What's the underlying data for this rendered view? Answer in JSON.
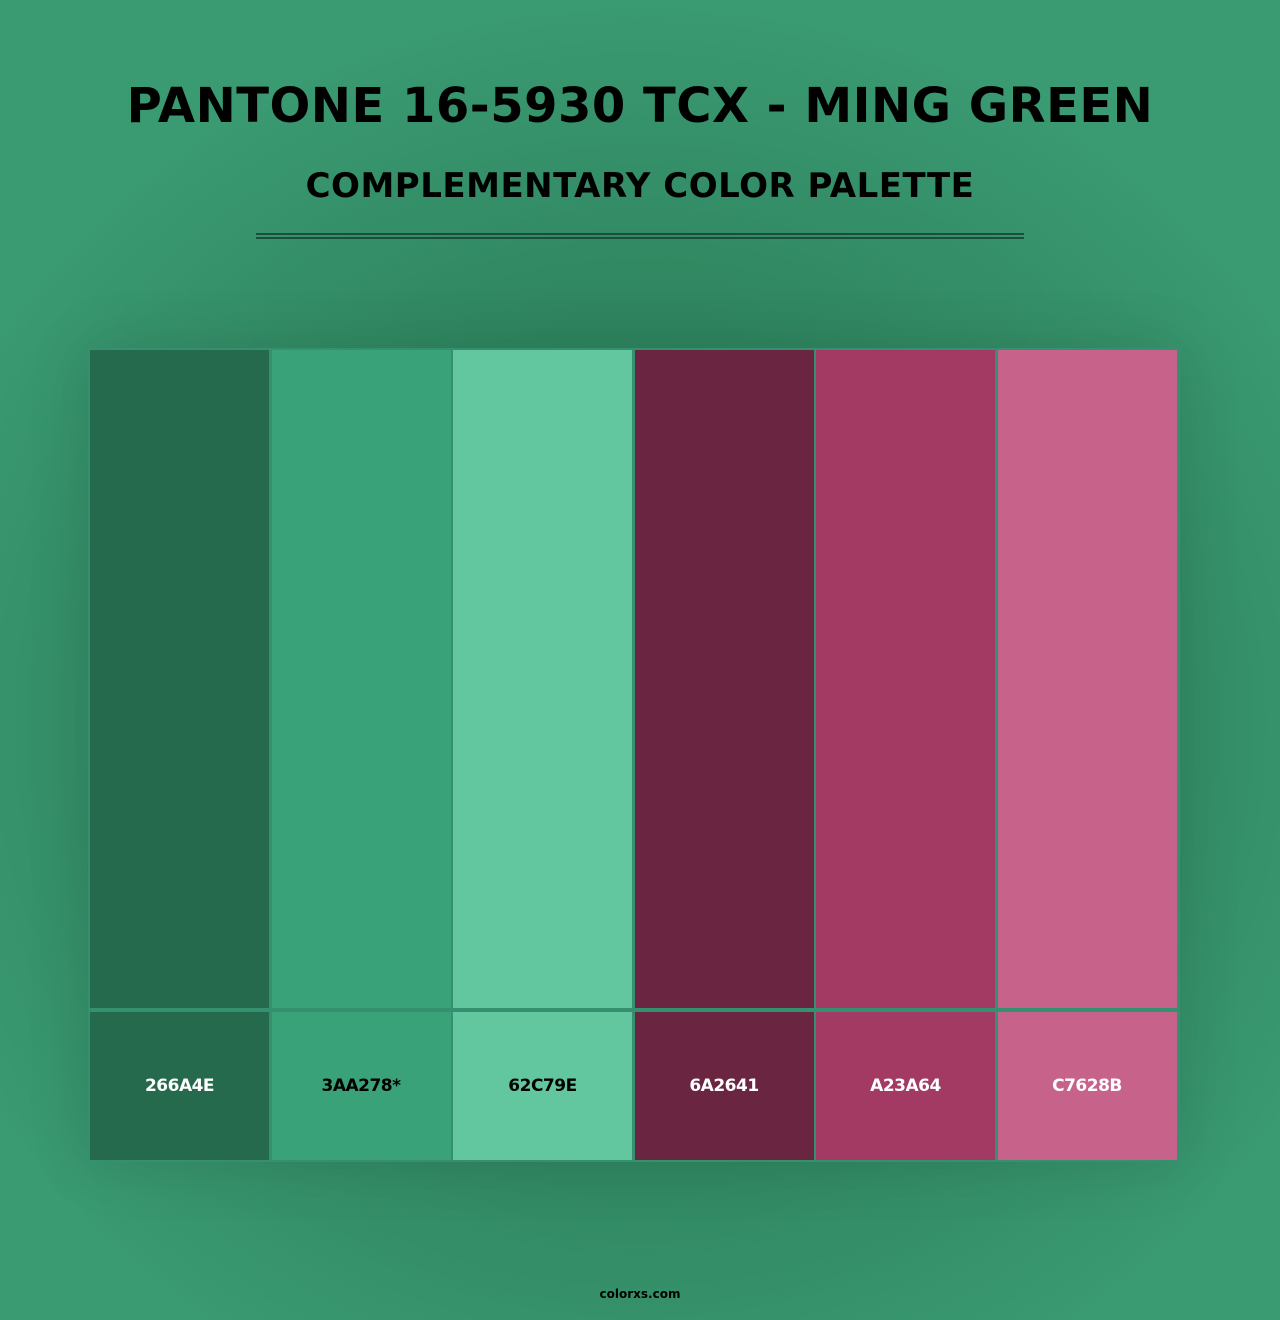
{
  "header": {
    "title": "PANTONE 16-5930 TCX - MING GREEN",
    "subtitle": "COMPLEMENTARY COLOR PALETTE"
  },
  "palette": {
    "swatches": [
      {
        "hex": "#266A4E",
        "label": "266A4E",
        "text_color": "#ffffff"
      },
      {
        "hex": "#3AA278",
        "label": "3AA278*",
        "text_color": "#000000"
      },
      {
        "hex": "#62C79E",
        "label": "62C79E",
        "text_color": "#000000"
      },
      {
        "hex": "#6A2641",
        "label": "6A2641",
        "text_color": "#ffffff"
      },
      {
        "hex": "#A23A64",
        "label": "A23A64",
        "text_color": "#ffffff"
      },
      {
        "hex": "#C7628B",
        "label": "C7628B",
        "text_color": "#ffffff"
      }
    ]
  },
  "footer": {
    "site": "colorxs.com"
  }
}
